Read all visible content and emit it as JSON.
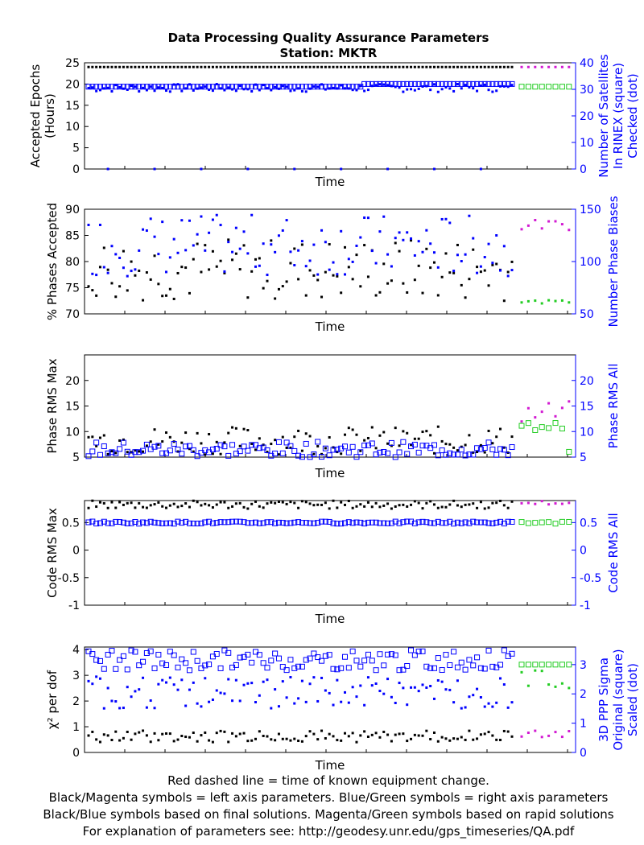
{
  "title": "Data Processing Quality Assurance Parameters",
  "subtitle": "Station: MKTR",
  "colors": {
    "black": "#000000",
    "magenta": "#d21ad2",
    "blue": "#0000ff",
    "green": "#22cc22"
  },
  "footer": [
    "Red dashed line = time of known equipment change.",
    "Black/Magenta symbols = left axis parameters. Blue/Green symbols = right axis parameters",
    "Black/Blue symbols based on final solutions.  Magenta/Green symbols based on rapid solutions",
    "For explanation of parameters see: http://geodesy.unr.edu/gps_timeseries/QA.pdf"
  ],
  "chart_data": [
    {
      "type": "scatter",
      "xlabel": "Time",
      "ylabel_left": [
        "Accepted Epochs",
        "(Hours)"
      ],
      "ylabel_right": [
        "Number of Satellites",
        "In RINEX (square)",
        "Checked (dot)"
      ],
      "ylim_left": [
        0,
        25
      ],
      "yticks_left": [
        "0",
        "5",
        "10",
        "15",
        "20",
        "25"
      ],
      "ylim_right": [
        0,
        40
      ],
      "yticks_right": [
        "0",
        "10",
        "20",
        "30",
        "40"
      ],
      "final_left_value": 24,
      "rapid_left_value": 24,
      "final_right_square": 31,
      "rapid_right_square": 31,
      "final_right_dot_range": [
        29,
        32
      ],
      "outlier_dot_value": 0
    },
    {
      "type": "scatter",
      "xlabel": "Time",
      "ylabel_left": [
        "% Phases Accepted"
      ],
      "ylabel_right": [
        "Number Phase Biases"
      ],
      "ylim_left": [
        70,
        90
      ],
      "yticks_left": [
        "70",
        "75",
        "80",
        "85",
        "90"
      ],
      "ylim_right": [
        50,
        150
      ],
      "yticks_right": [
        "50",
        "100",
        "150"
      ],
      "final_left_range": [
        72.5,
        84.5
      ],
      "rapid_left_range": [
        86,
        88
      ],
      "final_right_range": [
        86,
        145
      ],
      "rapid_right_range": [
        60,
        63
      ]
    },
    {
      "type": "scatter",
      "xlabel": "Time",
      "ylabel_left": [
        "Phase RMS Max"
      ],
      "ylabel_right": [
        "Phase RMS All"
      ],
      "ylim_left": [
        5,
        25
      ],
      "yticks_left": [
        "5",
        "10",
        "15",
        "20"
      ],
      "ylim_right": [
        5,
        25
      ],
      "yticks_right": [
        "5",
        "10",
        "15",
        "20"
      ],
      "final_left_range": [
        5.5,
        11
      ],
      "rapid_left_range": [
        11,
        16
      ],
      "final_right_range": [
        5,
        8
      ],
      "rapid_right_range": [
        6,
        12.5
      ]
    },
    {
      "type": "scatter",
      "xlabel": "Time",
      "ylabel_left": [
        "Code RMS Max"
      ],
      "ylabel_right": [
        "Code RMS All"
      ],
      "ylim_left": [
        -1,
        0.9
      ],
      "yticks_left": [
        "-1",
        "-0.5",
        "0",
        "0.5"
      ],
      "ylim_right": [
        -1,
        0.9
      ],
      "yticks_right": [
        "-1",
        "-0.5",
        "0",
        "0.5"
      ],
      "final_left_range": [
        0.75,
        0.9
      ],
      "rapid_left_range": [
        0.82,
        0.9
      ],
      "final_right_range": [
        0.48,
        0.52
      ],
      "rapid_right_range": [
        0.48,
        0.52
      ]
    },
    {
      "type": "scatter",
      "xlabel": "Time",
      "ylabel_left": [
        "χ² per dof"
      ],
      "ylabel_right": [
        "3D PPP Sigma",
        "Original (square)",
        "Scaled (dot)"
      ],
      "ylim_left": [
        0,
        4.1
      ],
      "yticks_left": [
        "0",
        "1",
        "2",
        "3",
        "4"
      ],
      "ylim_right": [
        0,
        3.6
      ],
      "yticks_right": [
        "0",
        "1",
        "2",
        "3"
      ],
      "final_left_range": [
        0.4,
        0.85
      ],
      "rapid_left_range": [
        0.6,
        0.85
      ],
      "final_right_square_range": [
        2.8,
        3.5
      ],
      "final_right_dot_range": [
        1.5,
        2.6
      ],
      "rapid_right_square": 3.0,
      "rapid_right_dot_range": [
        2.2,
        2.9
      ]
    }
  ]
}
